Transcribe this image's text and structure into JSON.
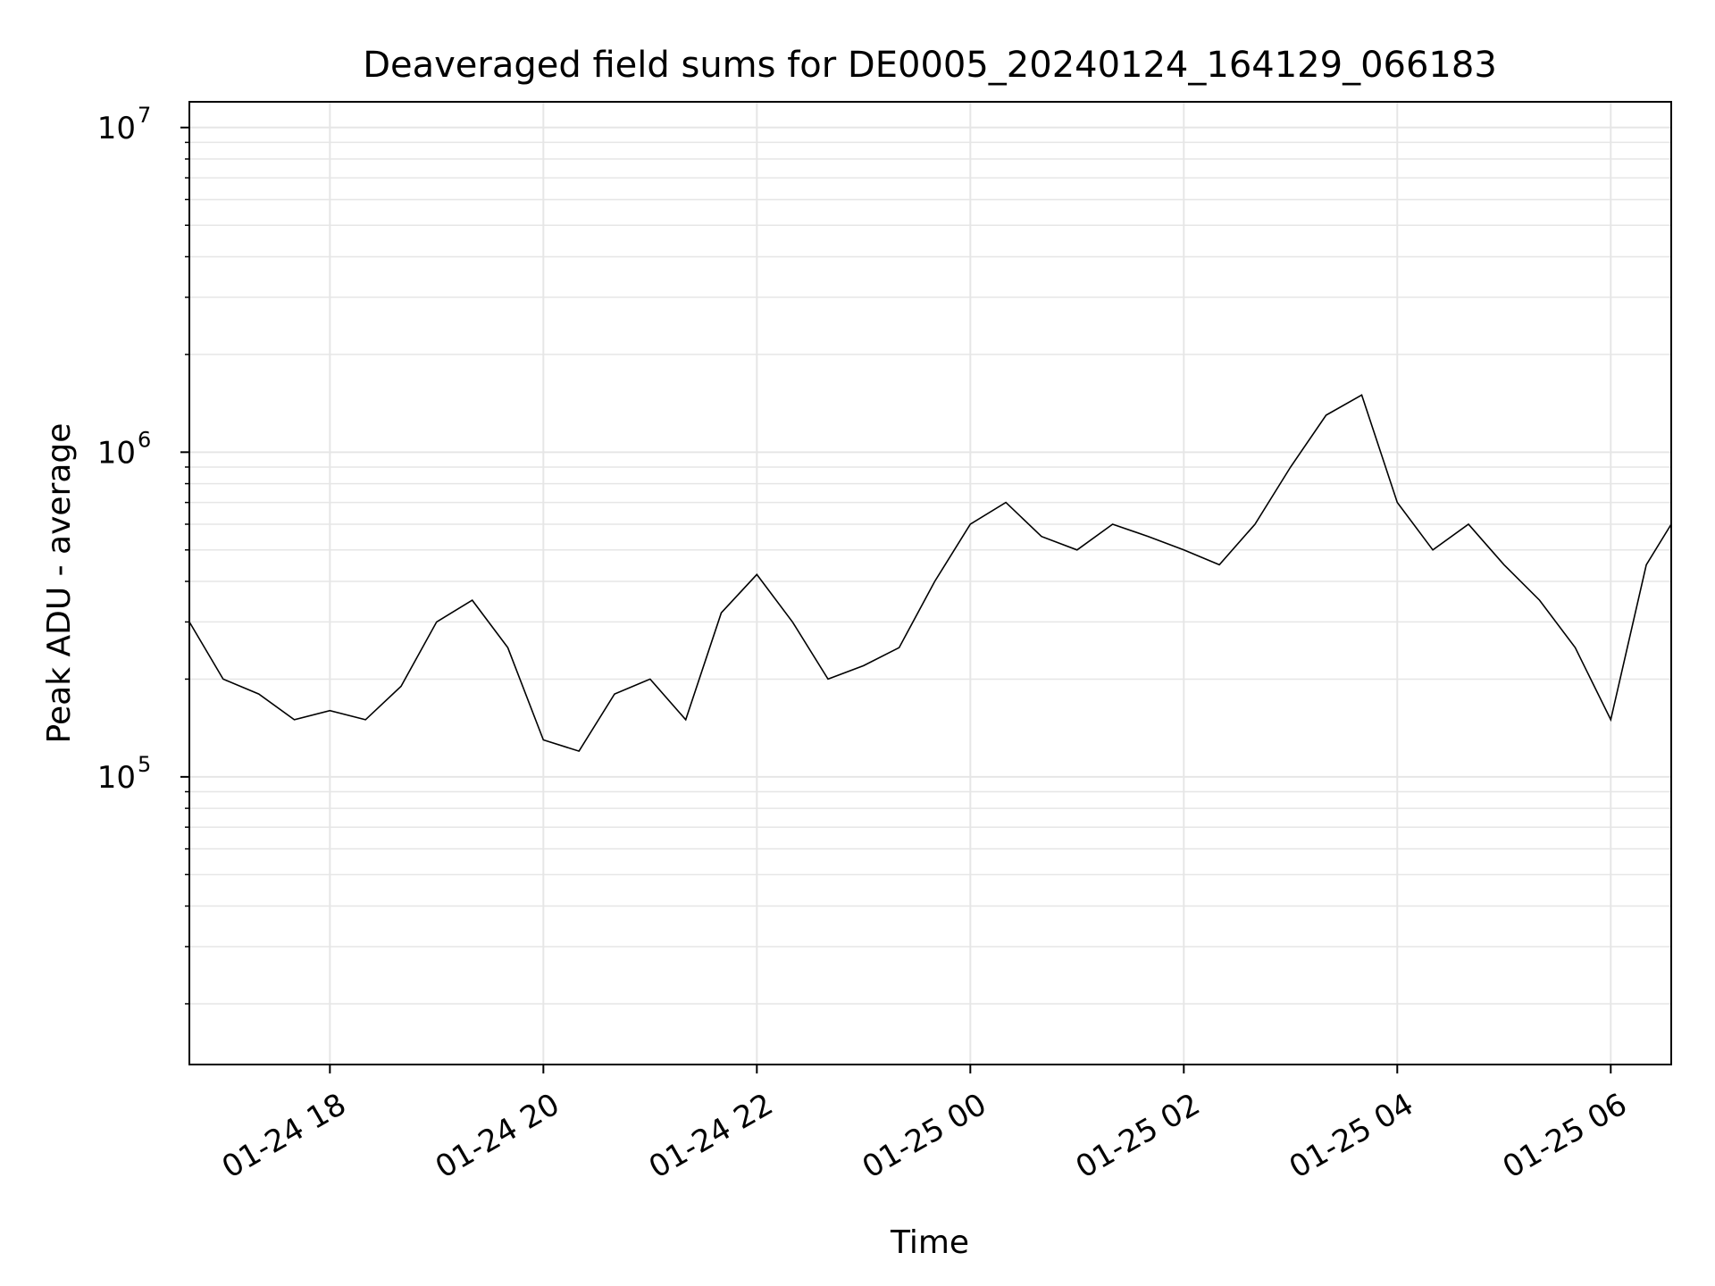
{
  "chart_data": {
    "type": "line",
    "title": "Deaveraged field sums for DE0005_20240124_164129_066183",
    "xlabel": "Time",
    "ylabel": "Peak ADU - average",
    "yscale": "log",
    "ylim": [
      13000,
      12000000
    ],
    "xlim": [
      "2024-01-24 16:41",
      "2024-01-25 06:34"
    ],
    "grid": "on",
    "x_ticks": [
      {
        "t": "2024-01-24 18:00",
        "label": "01-24 18"
      },
      {
        "t": "2024-01-24 20:00",
        "label": "01-24 20"
      },
      {
        "t": "2024-01-24 22:00",
        "label": "01-24 22"
      },
      {
        "t": "2024-01-25 00:00",
        "label": "01-25 00"
      },
      {
        "t": "2024-01-25 02:00",
        "label": "01-25 02"
      },
      {
        "t": "2024-01-25 04:00",
        "label": "01-25 04"
      },
      {
        "t": "2024-01-25 06:00",
        "label": "01-25 06"
      }
    ],
    "y_ticks": [
      {
        "value": 100000,
        "base": "10",
        "exp": "5"
      },
      {
        "value": 1000000,
        "base": "10",
        "exp": "6"
      },
      {
        "value": 10000000,
        "base": "10",
        "exp": "7"
      }
    ],
    "series": [
      {
        "color": "#000000",
        "x": [
          "2024-01-24 16:41",
          "2024-01-24 17:00",
          "2024-01-24 17:20",
          "2024-01-24 17:40",
          "2024-01-24 18:00",
          "2024-01-24 18:20",
          "2024-01-24 18:40",
          "2024-01-24 19:00",
          "2024-01-24 19:20",
          "2024-01-24 19:40",
          "2024-01-24 20:00",
          "2024-01-24 20:20",
          "2024-01-24 20:40",
          "2024-01-24 21:00",
          "2024-01-24 21:20",
          "2024-01-24 21:40",
          "2024-01-24 22:00",
          "2024-01-24 22:20",
          "2024-01-24 22:40",
          "2024-01-24 23:00",
          "2024-01-24 23:20",
          "2024-01-24 23:40",
          "2024-01-25 00:00",
          "2024-01-25 00:20",
          "2024-01-25 00:40",
          "2024-01-25 01:00",
          "2024-01-25 01:20",
          "2024-01-25 01:40",
          "2024-01-25 02:00",
          "2024-01-25 02:20",
          "2024-01-25 02:40",
          "2024-01-25 03:00",
          "2024-01-25 03:20",
          "2024-01-25 03:40",
          "2024-01-25 04:00",
          "2024-01-25 04:20",
          "2024-01-25 04:40",
          "2024-01-25 05:00",
          "2024-01-25 05:20",
          "2024-01-25 05:40",
          "2024-01-25 06:00",
          "2024-01-25 06:20",
          "2024-01-25 06:34"
        ],
        "y": [
          300000,
          200000,
          180000,
          150000,
          160000,
          150000,
          190000,
          300000,
          350000,
          250000,
          130000,
          120000,
          180000,
          200000,
          150000,
          320000,
          420000,
          300000,
          200000,
          220000,
          250000,
          400000,
          600000,
          700000,
          550000,
          500000,
          600000,
          550000,
          500000,
          450000,
          600000,
          900000,
          1300000,
          1500000,
          700000,
          500000,
          600000,
          450000,
          350000,
          250000,
          150000,
          450000,
          600000
        ]
      }
    ]
  }
}
